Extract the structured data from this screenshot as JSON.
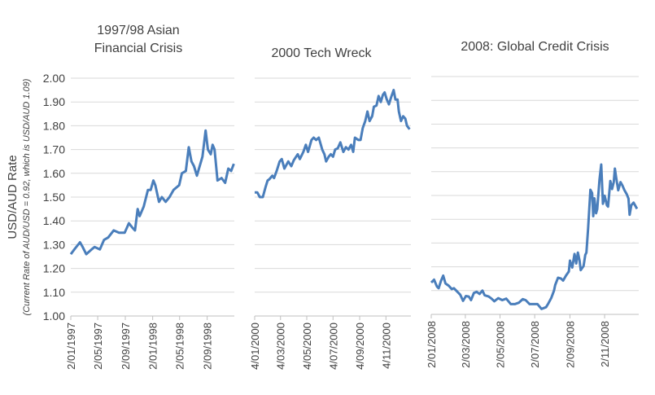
{
  "chart_data": {
    "type": "line",
    "ylabel": "USD/AUD Rate",
    "ylabel_sub": "(Current Rate of AUD/USD = 0.92, which is USD/AUD 1.09)",
    "ylim": [
      1.0,
      2.0
    ],
    "yticks": [
      "1.00",
      "1.10",
      "1.20",
      "1.30",
      "1.40",
      "1.50",
      "1.60",
      "1.70",
      "1.80",
      "1.90",
      "2.00"
    ],
    "grid": true,
    "line_color": "#4a7ebb",
    "grid_color": "#d9d9d9",
    "panels": [
      {
        "title_lines": [
          "1997/98 Asian",
          "Financial Crisis"
        ],
        "xlim": [
          "1997-01-02",
          "1999-01-01"
        ],
        "xticks": [
          "2/01/1997",
          "2/05/1997",
          "2/09/1997",
          "2/01/1998",
          "2/05/1998",
          "2/09/1998"
        ],
        "points": [
          [
            "1997-01-02",
            1.26
          ],
          [
            "1997-01-18",
            1.28
          ],
          [
            "1997-02-12",
            1.31
          ],
          [
            "1997-02-24",
            1.29
          ],
          [
            "1997-03-12",
            1.26
          ],
          [
            "1997-04-05",
            1.28
          ],
          [
            "1997-04-18",
            1.29
          ],
          [
            "1997-05-12",
            1.28
          ],
          [
            "1997-05-30",
            1.32
          ],
          [
            "1997-06-18",
            1.33
          ],
          [
            "1997-07-12",
            1.36
          ],
          [
            "1997-08-05",
            1.35
          ],
          [
            "1997-08-30",
            1.35
          ],
          [
            "1997-09-18",
            1.39
          ],
          [
            "1997-10-05",
            1.37
          ],
          [
            "1997-10-15",
            1.36
          ],
          [
            "1997-10-27",
            1.45
          ],
          [
            "1997-11-05",
            1.42
          ],
          [
            "1997-11-23",
            1.46
          ],
          [
            "1997-12-12",
            1.53
          ],
          [
            "1997-12-24",
            1.53
          ],
          [
            "1998-01-05",
            1.57
          ],
          [
            "1998-01-14",
            1.55
          ],
          [
            "1998-01-30",
            1.48
          ],
          [
            "1998-02-12",
            1.5
          ],
          [
            "1998-03-01",
            1.48
          ],
          [
            "1998-03-18",
            1.5
          ],
          [
            "1998-04-05",
            1.53
          ],
          [
            "1998-04-30",
            1.55
          ],
          [
            "1998-05-12",
            1.6
          ],
          [
            "1998-05-30",
            1.61
          ],
          [
            "1998-06-12",
            1.71
          ],
          [
            "1998-06-24",
            1.65
          ],
          [
            "1998-07-05",
            1.63
          ],
          [
            "1998-07-18",
            1.59
          ],
          [
            "1998-08-12",
            1.67
          ],
          [
            "1998-08-26",
            1.78
          ],
          [
            "1998-09-05",
            1.7
          ],
          [
            "1998-09-18",
            1.68
          ],
          [
            "1998-09-26",
            1.72
          ],
          [
            "1998-10-05",
            1.7
          ],
          [
            "1998-10-18",
            1.57
          ],
          [
            "1998-11-05",
            1.58
          ],
          [
            "1998-11-21",
            1.56
          ],
          [
            "1998-12-05",
            1.62
          ],
          [
            "1998-12-18",
            1.61
          ],
          [
            "1998-12-30",
            1.64
          ]
        ]
      },
      {
        "title_lines": [
          "2000 Tech Wreck"
        ],
        "xlim": [
          "2000-01-04",
          "2001-01-01"
        ],
        "xticks": [
          "4/01/2000",
          "4/03/2000",
          "4/05/2000",
          "4/07/2000",
          "4/09/2000",
          "4/11/2000"
        ],
        "points": [
          [
            "2000-01-04",
            1.52
          ],
          [
            "2000-01-10",
            1.52
          ],
          [
            "2000-01-16",
            1.5
          ],
          [
            "2000-01-23",
            1.5
          ],
          [
            "2000-01-29",
            1.54
          ],
          [
            "2000-02-03",
            1.57
          ],
          [
            "2000-02-07",
            1.575
          ],
          [
            "2000-02-14",
            1.59
          ],
          [
            "2000-02-18",
            1.58
          ],
          [
            "2000-02-24",
            1.61
          ],
          [
            "2000-03-02",
            1.65
          ],
          [
            "2000-03-07",
            1.66
          ],
          [
            "2000-03-13",
            1.62
          ],
          [
            "2000-03-22",
            1.65
          ],
          [
            "2000-03-29",
            1.63
          ],
          [
            "2000-04-04",
            1.655
          ],
          [
            "2000-04-13",
            1.68
          ],
          [
            "2000-04-18",
            1.66
          ],
          [
            "2000-04-26",
            1.69
          ],
          [
            "2000-05-02",
            1.72
          ],
          [
            "2000-05-07",
            1.69
          ],
          [
            "2000-05-15",
            1.74
          ],
          [
            "2000-05-20",
            1.75
          ],
          [
            "2000-05-26",
            1.74
          ],
          [
            "2000-06-01",
            1.75
          ],
          [
            "2000-06-09",
            1.7
          ],
          [
            "2000-06-14",
            1.68
          ],
          [
            "2000-06-18",
            1.65
          ],
          [
            "2000-06-24",
            1.67
          ],
          [
            "2000-06-29",
            1.68
          ],
          [
            "2000-07-04",
            1.67
          ],
          [
            "2000-07-09",
            1.7
          ],
          [
            "2000-07-15",
            1.705
          ],
          [
            "2000-07-21",
            1.73
          ],
          [
            "2000-07-28",
            1.69
          ],
          [
            "2000-08-03",
            1.71
          ],
          [
            "2000-08-09",
            1.7
          ],
          [
            "2000-08-15",
            1.72
          ],
          [
            "2000-08-20",
            1.69
          ],
          [
            "2000-08-24",
            1.75
          ],
          [
            "2000-09-01",
            1.74
          ],
          [
            "2000-09-06",
            1.74
          ],
          [
            "2000-09-11",
            1.79
          ],
          [
            "2000-09-17",
            1.82
          ],
          [
            "2000-09-22",
            1.86
          ],
          [
            "2000-09-27",
            1.82
          ],
          [
            "2000-10-03",
            1.84
          ],
          [
            "2000-10-07",
            1.88
          ],
          [
            "2000-10-13",
            1.885
          ],
          [
            "2000-10-18",
            1.925
          ],
          [
            "2000-10-23",
            1.9
          ],
          [
            "2000-10-28",
            1.93
          ],
          [
            "2000-11-01",
            1.94
          ],
          [
            "2000-11-06",
            1.91
          ],
          [
            "2000-11-11",
            1.89
          ],
          [
            "2000-11-16",
            1.92
          ],
          [
            "2000-11-22",
            1.95
          ],
          [
            "2000-11-26",
            1.91
          ],
          [
            "2000-12-01",
            1.91
          ],
          [
            "2000-12-04",
            1.86
          ],
          [
            "2000-12-09",
            1.82
          ],
          [
            "2000-12-14",
            1.84
          ],
          [
            "2000-12-19",
            1.83
          ],
          [
            "2000-12-23",
            1.8
          ],
          [
            "2000-12-29",
            1.785
          ]
        ]
      },
      {
        "title_lines": [
          "2008: Global Credit Crisis"
        ],
        "xlim": [
          "2008-01-02",
          "2009-01-01"
        ],
        "xticks": [
          "2/01/2008",
          "2/03/2008",
          "2/05/2008",
          "2/07/2008",
          "2/09/2008",
          "2/11/2008"
        ],
        "points": [
          [
            "2008-01-02",
            1.134
          ],
          [
            "2008-01-07",
            1.146
          ],
          [
            "2008-01-12",
            1.117
          ],
          [
            "2008-01-15",
            1.11
          ],
          [
            "2008-01-19",
            1.14
          ],
          [
            "2008-01-23",
            1.163
          ],
          [
            "2008-01-27",
            1.13
          ],
          [
            "2008-02-02",
            1.12
          ],
          [
            "2008-02-07",
            1.106
          ],
          [
            "2008-02-11",
            1.11
          ],
          [
            "2008-02-15",
            1.1
          ],
          [
            "2008-02-22",
            1.083
          ],
          [
            "2008-02-27",
            1.057
          ],
          [
            "2008-03-03",
            1.077
          ],
          [
            "2008-03-08",
            1.075
          ],
          [
            "2008-03-12",
            1.06
          ],
          [
            "2008-03-17",
            1.09
          ],
          [
            "2008-03-22",
            1.095
          ],
          [
            "2008-03-27",
            1.086
          ],
          [
            "2008-04-01",
            1.1
          ],
          [
            "2008-04-05",
            1.08
          ],
          [
            "2008-04-12",
            1.075
          ],
          [
            "2008-04-17",
            1.066
          ],
          [
            "2008-04-22",
            1.055
          ],
          [
            "2008-04-29",
            1.068
          ],
          [
            "2008-05-06",
            1.06
          ],
          [
            "2008-05-13",
            1.066
          ],
          [
            "2008-05-21",
            1.043
          ],
          [
            "2008-05-28",
            1.043
          ],
          [
            "2008-06-04",
            1.049
          ],
          [
            "2008-06-11",
            1.064
          ],
          [
            "2008-06-16",
            1.06
          ],
          [
            "2008-06-23",
            1.043
          ],
          [
            "2008-06-30",
            1.043
          ],
          [
            "2008-07-07",
            1.043
          ],
          [
            "2008-07-14",
            1.023
          ],
          [
            "2008-07-22",
            1.03
          ],
          [
            "2008-07-26",
            1.046
          ],
          [
            "2008-07-31",
            1.068
          ],
          [
            "2008-08-05",
            1.1
          ],
          [
            "2008-08-07",
            1.123
          ],
          [
            "2008-08-12",
            1.154
          ],
          [
            "2008-08-17",
            1.151
          ],
          [
            "2008-08-21",
            1.142
          ],
          [
            "2008-08-26",
            1.163
          ],
          [
            "2008-08-31",
            1.18
          ],
          [
            "2008-09-02",
            1.226
          ],
          [
            "2008-09-06",
            1.197
          ],
          [
            "2008-09-10",
            1.254
          ],
          [
            "2008-09-13",
            1.214
          ],
          [
            "2008-09-16",
            1.26
          ],
          [
            "2008-09-19",
            1.226
          ],
          [
            "2008-09-21",
            1.186
          ],
          [
            "2008-09-26",
            1.203
          ],
          [
            "2008-09-29",
            1.25
          ],
          [
            "2008-10-01",
            1.26
          ],
          [
            "2008-10-04",
            1.362
          ],
          [
            "2008-10-08",
            1.524
          ],
          [
            "2008-10-11",
            1.51
          ],
          [
            "2008-10-13",
            1.413
          ],
          [
            "2008-10-15",
            1.488
          ],
          [
            "2008-10-18",
            1.425
          ],
          [
            "2008-10-20",
            1.442
          ],
          [
            "2008-10-24",
            1.567
          ],
          [
            "2008-10-27",
            1.63
          ],
          [
            "2008-10-30",
            1.465
          ],
          [
            "2008-11-02",
            1.499
          ],
          [
            "2008-11-06",
            1.459
          ],
          [
            "2008-11-08",
            1.453
          ],
          [
            "2008-11-12",
            1.561
          ],
          [
            "2008-11-15",
            1.527
          ],
          [
            "2008-11-18",
            1.556
          ],
          [
            "2008-11-20",
            1.613
          ],
          [
            "2008-11-22",
            1.579
          ],
          [
            "2008-11-26",
            1.522
          ],
          [
            "2008-11-30",
            1.556
          ],
          [
            "2008-12-03",
            1.544
          ],
          [
            "2008-12-07",
            1.522
          ],
          [
            "2008-12-11",
            1.505
          ],
          [
            "2008-12-14",
            1.487
          ],
          [
            "2008-12-16",
            1.419
          ],
          [
            "2008-12-19",
            1.459
          ],
          [
            "2008-12-23",
            1.47
          ],
          [
            "2008-12-29",
            1.444
          ]
        ]
      }
    ]
  }
}
